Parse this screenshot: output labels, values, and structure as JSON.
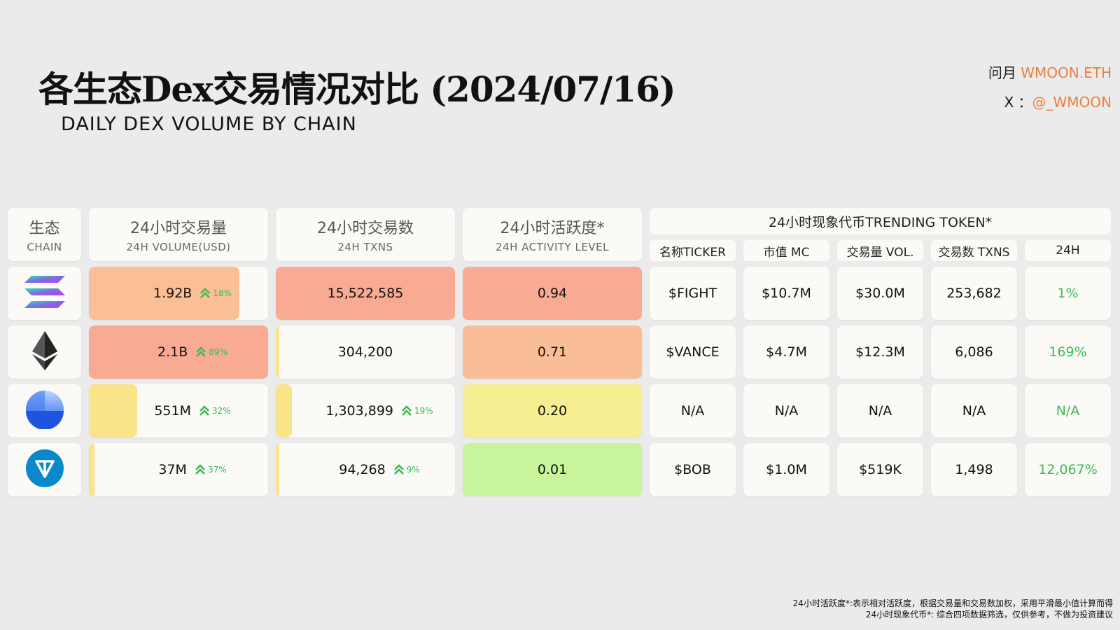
{
  "header": {
    "title": "各生态Dex交易情况对比 (2024/07/16)",
    "subtitle": "DAILY DEX VOLUME BY CHAIN",
    "credit_name_label": "问月",
    "credit_name": "WMOON.ETH",
    "credit_x_label": "X ：",
    "credit_x": "@_WMOON"
  },
  "columns": {
    "chain": {
      "cn": "生态",
      "en": "CHAIN"
    },
    "volume": {
      "cn": "24小时交易量",
      "en": "24H VOLUME(USD)"
    },
    "txns": {
      "cn": "24小时交易数",
      "en": "24H TXNS"
    },
    "activity": {
      "cn": "24小时活跃度*",
      "en": "24H ACTIVITY LEVEL"
    },
    "trending": {
      "title": "24小时现象代币TRENDING TOKEN*",
      "sub": [
        "名称TICKER",
        "市值 MC",
        "交易量 VOL.",
        "交易数 TXNS",
        "24H"
      ]
    }
  },
  "rows": [
    {
      "chain_icon": "solana-icon",
      "volume": "1.92B",
      "volume_change": "18%",
      "volume_fill": 0.84,
      "volume_color": "#fbbf95",
      "txns": "15,522,585",
      "txns_change": "",
      "txns_fill": 1.0,
      "txns_color": "#f9aa93",
      "activity": "0.94",
      "activity_color": "#f8aa93",
      "ticker": "$FIGHT",
      "mc": "$10.7M",
      "vol": "$30.0M",
      "tx": "253,682",
      "change": "1%"
    },
    {
      "chain_icon": "ethereum-icon",
      "volume": "2.1B",
      "volume_change": "89%",
      "volume_fill": 1.0,
      "volume_color": "#f9aa93",
      "txns": "304,200",
      "txns_change": "",
      "txns_fill": 0.02,
      "txns_color": "#fbe38a",
      "activity": "0.71",
      "activity_color": "#f9be97",
      "ticker": "$VANCE",
      "mc": "$4.7M",
      "vol": "$12.3M",
      "tx": "6,086",
      "change": "169%"
    },
    {
      "chain_icon": "base-icon",
      "volume": "551M",
      "volume_change": "32%",
      "volume_fill": 0.27,
      "volume_color": "#fbe38a",
      "txns": "1,303,899",
      "txns_change": "19%",
      "txns_fill": 0.09,
      "txns_color": "#fbe38a",
      "activity": "0.20",
      "activity_color": "#f6ee90",
      "ticker": "N/A",
      "mc": "N/A",
      "vol": "N/A",
      "tx": "N/A",
      "change": "N/A"
    },
    {
      "chain_icon": "ton-icon",
      "volume": "37M",
      "volume_change": "37%",
      "volume_fill": 0.03,
      "volume_color": "#fbe38a",
      "txns": "94,268",
      "txns_change": "9%",
      "txns_fill": 0.01,
      "txns_color": "#fbe38a",
      "activity": "0.01",
      "activity_color": "#c8f59b",
      "ticker": "$BOB",
      "mc": "$1.0M",
      "vol": "$519K",
      "tx": "1,498",
      "change": "12,067%"
    }
  ],
  "footnotes": [
    "24小时活跃度*:表示相对活跃度，根据交易量和交易数加权，采用平滑最小值计算而得",
    "24小时现象代币*: 综合四项数据筛选，仅供参考，不做为投资建议"
  ]
}
